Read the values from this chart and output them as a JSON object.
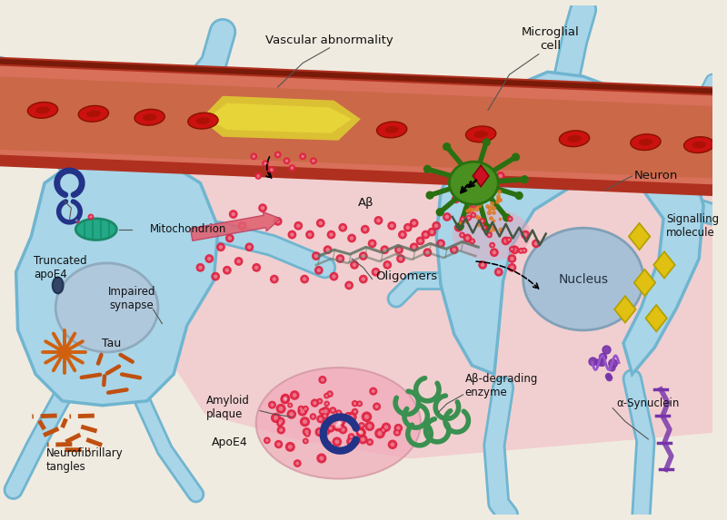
{
  "bg": "#f0ebe0",
  "neuron_fill": "#a8d5e8",
  "neuron_edge": "#70b5d0",
  "vessel_dark": "#b03020",
  "vessel_mid": "#c84830",
  "vessel_light": "#d8705a",
  "rbc": "#cc1111",
  "rbc_edge": "#881100",
  "yellow_plaque": "#e0d030",
  "pink_region": "#f2b8c4",
  "ab_dot": "#e02040",
  "oligomer_line": "#607060",
  "arrow_pink": "#e06070",
  "microglial_dark": "#2a7010",
  "microglial_mid": "#4a9020",
  "orange_dots": "#e07820",
  "jagged_edge": "#445544",
  "nucleus_fill": "#a8c0d5",
  "nucleus_edge": "#80a0b8",
  "nucleus_text": "#223344",
  "tau_color": "#d06010",
  "nft_color": "#c05010",
  "amyloid_blob": "#f0a8b8",
  "amyloid_edge": "#d090a0",
  "apoe4_color": "#223388",
  "enzyme_color": "#3a9050",
  "signalling_mol": "#e0c010",
  "signalling_edge": "#b0a000",
  "alpha_syn_color": "#7733aa",
  "mit_color": "#22aa88",
  "mit_edge": "#1a8a68",
  "label_text": "#111111",
  "vascular_ab_label": "Vascular abnormality",
  "microglial_label": "Microglial\ncell",
  "neuron_label": "Neuron",
  "signalling_label": "Signalling\nmolecule",
  "nucleus_label": "Nucleus",
  "oligomers_label": "Oligomers",
  "abeta_label": "Aβ",
  "mito_label": "Mitochondrion",
  "truncated_label": "Truncated\napoE4",
  "impaired_label": "Impaired\nsynapse",
  "tau_label": "Tau",
  "nft_label": "Neurofibrillary\ntangles",
  "amyloid_label": "Amyloid\nplaque",
  "apoe4_label": "ApoE4",
  "enzyme_label": "Aβ-degrading\nenzyme",
  "synuclein_label": "α-Synuclein"
}
